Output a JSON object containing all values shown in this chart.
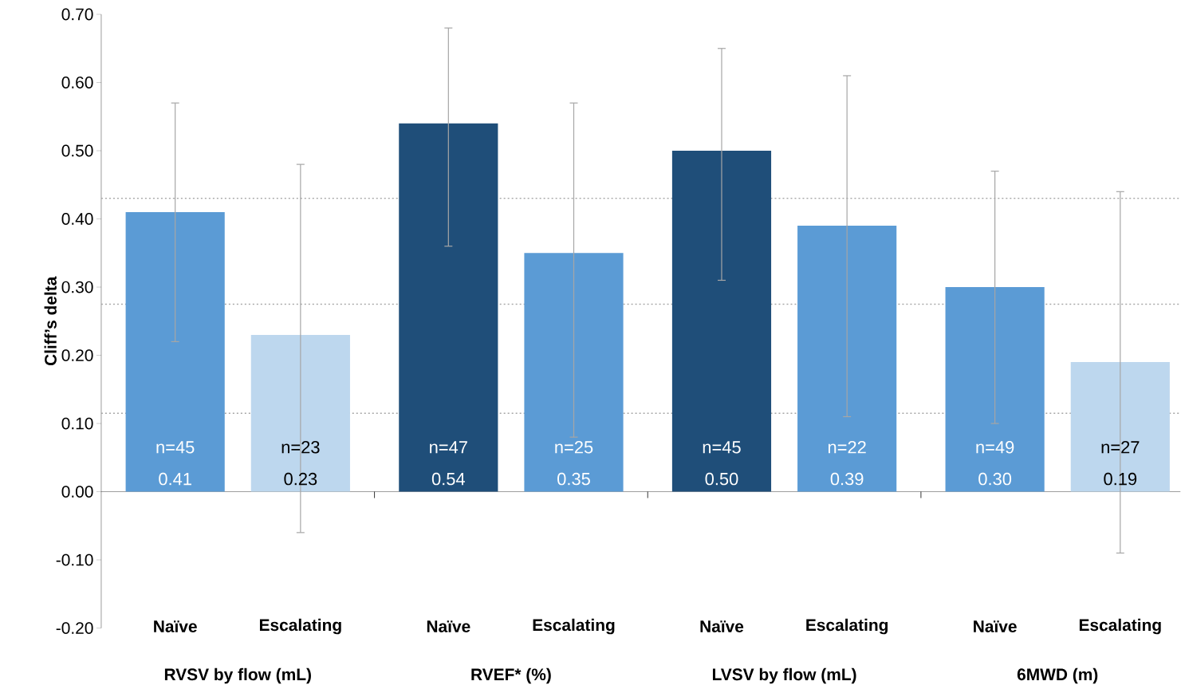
{
  "chart_data": {
    "type": "bar",
    "ylabel": "Cliff’s delta",
    "categories": [
      "Naïve",
      "Escalating",
      "Naïve",
      "Escalating",
      "Naïve",
      "Escalating",
      "Naïve",
      "Escalating"
    ],
    "values": [
      0.41,
      0.23,
      0.54,
      0.35,
      0.5,
      0.39,
      0.3,
      0.19
    ],
    "colors": [
      "#5b9bd5",
      "#bdd7ee",
      "#1f4e79",
      "#5b9bd5",
      "#1f4e79",
      "#5b9bd5",
      "#5b9bd5",
      "#bdd7ee"
    ],
    "errors": [
      [
        0.22,
        0.57
      ],
      [
        -0.06,
        0.48
      ],
      [
        0.36,
        0.68
      ],
      [
        0.08,
        0.57
      ],
      [
        0.31,
        0.65
      ],
      [
        0.11,
        0.61
      ],
      [
        0.1,
        0.47
      ],
      [
        -0.09,
        0.44
      ]
    ],
    "value_labels": [
      "n=45 0.41",
      "n=23 0.23",
      "n=47 0.54",
      "n=25 0.35",
      "n=45 0.50",
      "n=22 0.39",
      "n=49 0.30",
      "n=27 0.19"
    ],
    "ylim": [
      -0.2,
      0.7
    ],
    "yticks": [
      {
        "value": -0.2,
        "label": "-0.20"
      },
      {
        "value": -0.1,
        "label": "-0.10"
      },
      {
        "value": 0,
        "label": "0.00"
      },
      {
        "value": 0.1,
        "label": "0.10"
      },
      {
        "value": 0.2,
        "label": "0.20"
      },
      {
        "value": 0.3,
        "label": "0.30"
      },
      {
        "value": 0.4,
        "label": "0.40"
      },
      {
        "value": 0.5,
        "label": "0.50"
      },
      {
        "value": 0.6,
        "label": "0.60"
      },
      {
        "value": 0.7,
        "label": "0.70"
      }
    ],
    "ref_lines": [
      {
        "axis": "y",
        "value": 0.43,
        "color": "#a6a6a6",
        "line_style": "dotted"
      },
      {
        "axis": "y",
        "value": 0.275,
        "color": "#a6a6a6",
        "line_style": "dotted"
      },
      {
        "axis": "y",
        "value": 0.115,
        "color": "#a6a6a6",
        "line_style": "dotted"
      }
    ],
    "annotations": [
      "RVSV by flow  (mL)",
      "RVEF* (%)",
      "LVSV by flow (mL)",
      "6MWD (m)"
    ]
  }
}
